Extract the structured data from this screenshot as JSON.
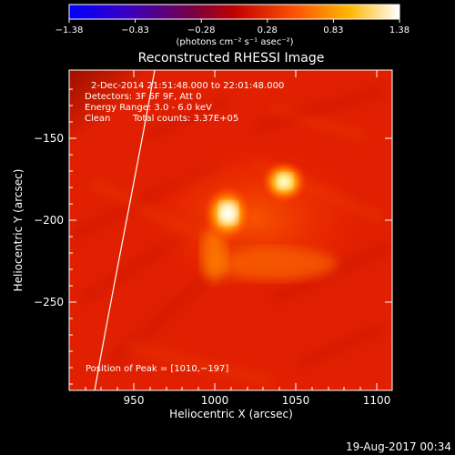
{
  "colorbar": {
    "ticks": [
      "−1.38",
      "−0.83",
      "−0.28",
      "0.28",
      "0.83",
      "1.38"
    ],
    "units": "(photons cm⁻² s⁻¹ asec⁻²)"
  },
  "title": "Reconstructed RHESSI Image",
  "info": {
    "time_range": "2-Dec-2014 21:51:48.000 to 22:01:48.000",
    "detectors": "Detectors: 3F 6F 9F, Att 0",
    "energy": "Energy Range: 3.0 - 6.0 keV",
    "clean": "Clean",
    "counts": "Total counts: 3.37E+05"
  },
  "peak": "Position of Peak = [1010,−197]",
  "axes": {
    "xlabel": "Heliocentric X (arcsec)",
    "ylabel": "Heliocentric Y (arcsec)",
    "xticks": [
      "950",
      "1000",
      "1050",
      "1100"
    ],
    "yticks": [
      "−150",
      "−200",
      "−250"
    ]
  },
  "timestamp": "19-Aug-2017 00:34"
}
